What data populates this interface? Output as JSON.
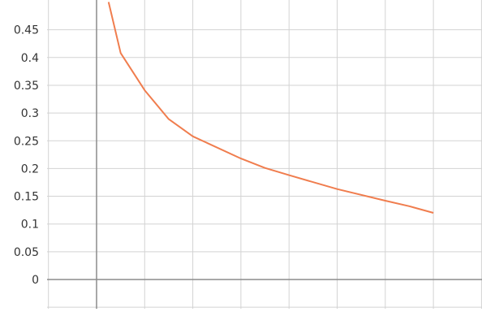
{
  "chart_data": {
    "type": "line",
    "title": "",
    "xlabel": "",
    "ylabel": "",
    "grid": true,
    "xlim": [
      -1,
      8
    ],
    "ylim": [
      -0.05,
      0.5
    ],
    "y_ticks": [
      "0",
      "0.05",
      "0.1",
      "0.15",
      "0.2",
      "0.25",
      "0.3",
      "0.35",
      "0.4",
      "0.45"
    ],
    "y_tick_values": [
      0,
      0.05,
      0.1,
      0.15,
      0.2,
      0.25,
      0.3,
      0.35,
      0.4,
      0.45
    ],
    "x_gridlines": [
      -1,
      0,
      1,
      2,
      3,
      4,
      5,
      6,
      7,
      8
    ],
    "series": [
      {
        "color": "#f07d4e",
        "x": [
          0.25,
          0.5,
          1,
          1.5,
          2,
          3,
          3.5,
          4,
          5,
          6,
          6.5,
          7
        ],
        "y": [
          0.5,
          0.408,
          0.341,
          0.289,
          0.258,
          0.218,
          0.201,
          0.188,
          0.163,
          0.142,
          0.132,
          0.12
        ]
      }
    ],
    "colors": {
      "grid": "#d3d3d3",
      "axis": "#8c8c8c"
    }
  }
}
